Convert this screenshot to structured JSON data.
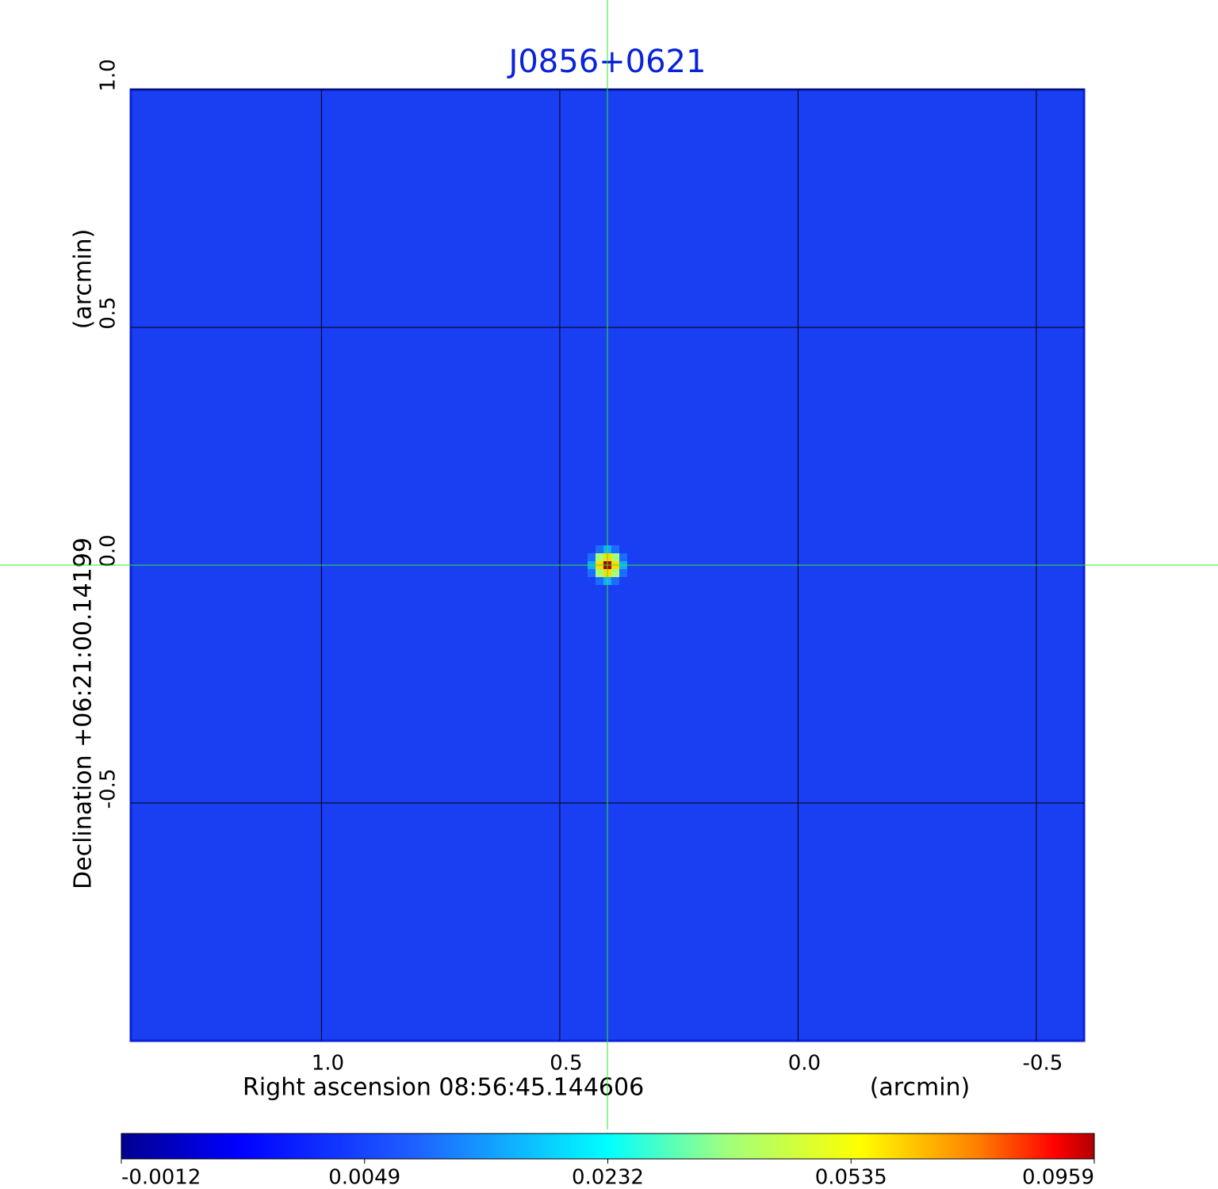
{
  "chart_data": {
    "type": "image",
    "title": "J0856+0621",
    "xlabel": "Right ascension  08:56:45.144606",
    "xunit": "(arcmin)",
    "ylabel": "Declination  +06:21:00.14199",
    "yunit": "(arcmin)",
    "xlim": [
      1.4,
      -0.6
    ],
    "ylim": [
      -1.0,
      1.0
    ],
    "xticks": [
      {
        "value": 1,
        "label": "1.0"
      },
      0.5,
      {
        "value": 0,
        "label": "0.0"
      },
      -0.5
    ],
    "yticks": [
      -0.5,
      {
        "value": 0,
        "label": "0.0"
      },
      0.5,
      {
        "value": 1,
        "label": "1.0"
      }
    ],
    "grid": true,
    "background_color": "#1a3ff2",
    "source": {
      "x": 0.4,
      "y": 0,
      "peak": 0.0959
    },
    "colorbar": {
      "colormap": "jet",
      "ticks": [
        -0.0012,
        0.0049,
        0.0232,
        0.0535,
        0.0959
      ]
    }
  }
}
